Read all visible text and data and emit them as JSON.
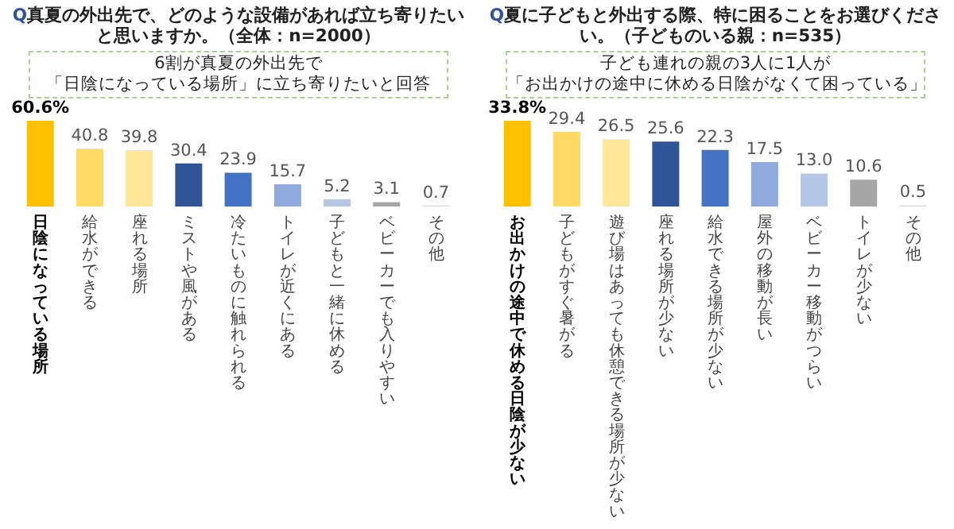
{
  "chart_data": [
    {
      "type": "bar",
      "title": "Q真夏の外出先で、どのような設備があれば立ち寄りたいと思いますか。（全体：n=2000）",
      "annotations": [
        "6割が真夏の外出先で「日陰になっている場所」に立ち寄りたいと回答"
      ],
      "categories": [
        "日陰になっている場所",
        "給水ができる",
        "座れる場所",
        "ミストや風がある",
        "冷たいものに触れられる",
        "トイレが近くにある",
        "子どもと一緒に休める",
        "ベビーカーでも入りやすい",
        "その他"
      ],
      "values": [
        60.6,
        40.8,
        39.8,
        30.4,
        23.9,
        15.7,
        5.2,
        3.1,
        0.7
      ],
      "value_labels": [
        "60.6%",
        "40.8",
        "39.8",
        "30.4",
        "23.9",
        "15.7",
        "5.2",
        "3.1",
        "0.7"
      ],
      "colors": [
        "#ffc000",
        "#ffd966",
        "#ffe699",
        "#2f5597",
        "#4472c4",
        "#8faadc",
        "#b4c7e7",
        "#a6a6a6",
        "#d9d9d9"
      ]
    },
    {
      "type": "bar",
      "title": "Q夏に子どもと外出する際、特に困ることをお選びください。（子どものいる親：n=535）",
      "annotations": [
        "子ども連れの親の3人に1人が「お出かけの途中に休める日陰がなくて困っている」"
      ],
      "categories": [
        "お出かけの途中で休める日陰が少ない",
        "子どもがすぐ暑がる",
        "遊び場はあっても休憩できる場所が少ない",
        "座れる場所が少ない",
        "給水できる場所が少ない",
        "屋外の移動が長い",
        "ベビーカー移動がつらい",
        "トイレが少ない",
        "その他"
      ],
      "values": [
        33.8,
        29.4,
        26.5,
        25.6,
        22.3,
        17.5,
        13.0,
        10.6,
        0.5
      ],
      "value_labels": [
        "33.8%",
        "29.4",
        "26.5",
        "25.6",
        "22.3",
        "17.5",
        "13.0",
        "10.6",
        "0.5"
      ],
      "colors": [
        "#ffc000",
        "#ffd966",
        "#ffe699",
        "#2f5597",
        "#4472c4",
        "#8faadc",
        "#b4c7e7",
        "#a6a6a6",
        "#d9d9d9"
      ]
    }
  ]
}
